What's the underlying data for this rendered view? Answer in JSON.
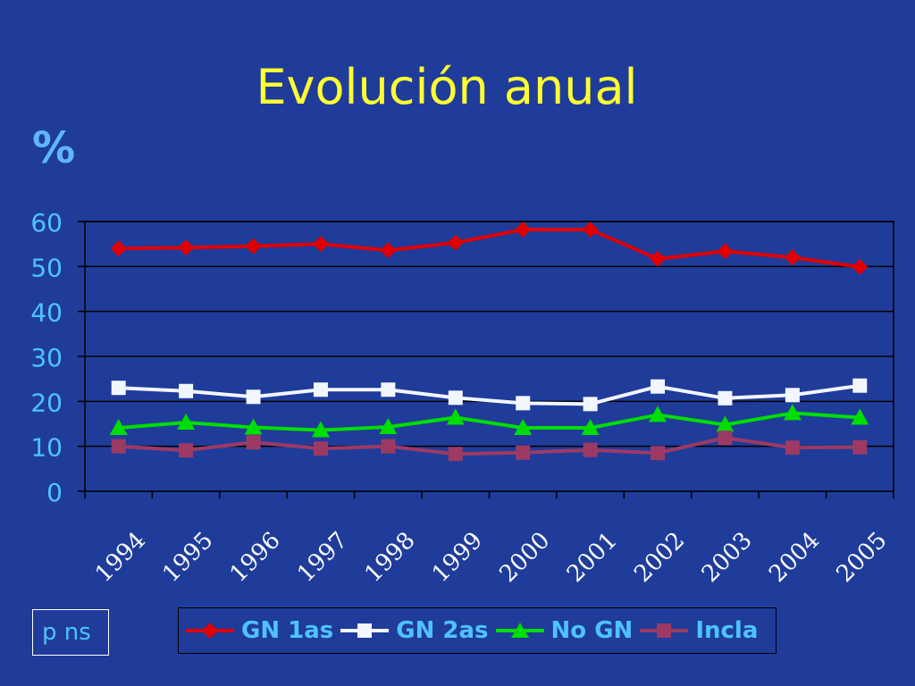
{
  "chart_data": {
    "type": "line",
    "title": "Evolución anual",
    "ylabel": "%",
    "xlabel": "",
    "ylim": [
      0,
      60
    ],
    "yticks": [
      0,
      10,
      20,
      30,
      40,
      50,
      60
    ],
    "categories": [
      "1994",
      "1995",
      "1996",
      "1997",
      "1998",
      "1999",
      "2000",
      "2001",
      "2002",
      "2003",
      "2004",
      "2005"
    ],
    "grid": true,
    "legend_position": "bottom",
    "series": [
      {
        "name": "GN 1as",
        "color": "#e00000",
        "marker": "diamond",
        "values": [
          54,
          54.2,
          54.5,
          55,
          53.6,
          55.3,
          58.2,
          58.2,
          51.7,
          53.4,
          52,
          49.9
        ]
      },
      {
        "name": "GN 2as",
        "color": "#f2f6ff",
        "marker": "square",
        "values": [
          23,
          22.3,
          21,
          22.6,
          22.6,
          20.8,
          19.6,
          19.4,
          23.3,
          20.7,
          21.4,
          23.5
        ]
      },
      {
        "name": "No GN",
        "color": "#00dd00",
        "marker": "triangle",
        "values": [
          14.1,
          15.3,
          14.2,
          13.6,
          14.3,
          16.4,
          14.1,
          14.1,
          17,
          14.8,
          17.4,
          16.4
        ]
      },
      {
        "name": "Incla",
        "color": "#9c3a64",
        "marker": "square",
        "values": [
          10,
          9.1,
          10.9,
          9.5,
          10,
          8.3,
          8.6,
          9.2,
          8.5,
          11.9,
          9.7,
          9.8
        ]
      }
    ],
    "annotation": "p ns"
  }
}
